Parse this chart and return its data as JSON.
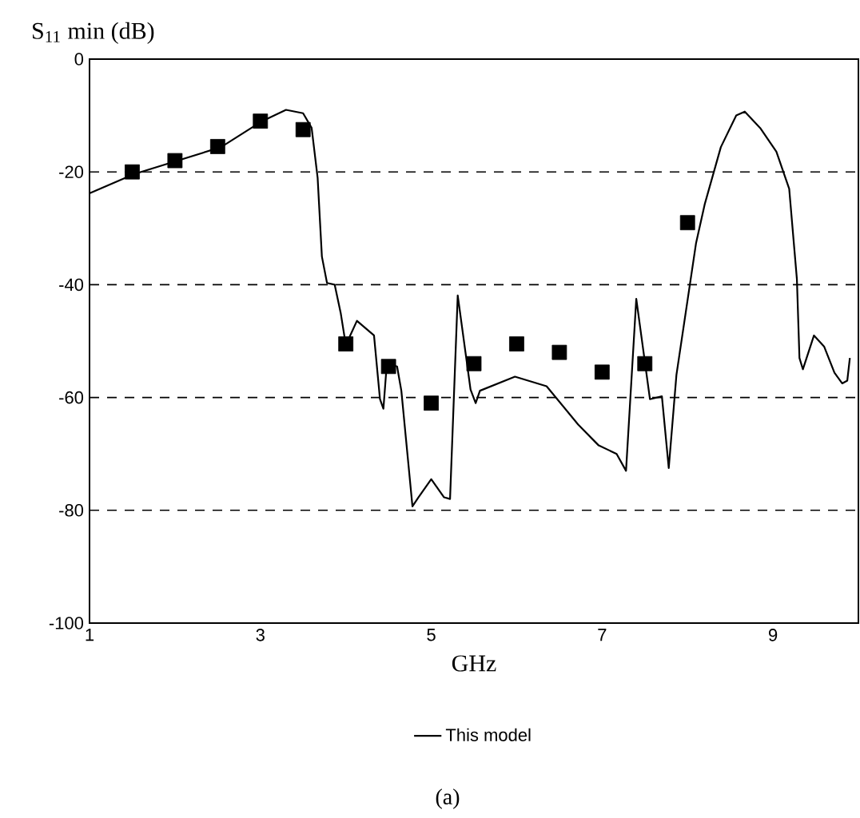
{
  "chart_data": {
    "type": "line",
    "ylabel": "S$_{11}$ min (dB)",
    "xlabel": "GHz",
    "xlim": [
      1,
      10
    ],
    "xticks": [
      1,
      3,
      5,
      7,
      9
    ],
    "ylim": [
      -100,
      0
    ],
    "yticks": [
      -100,
      -80,
      -60,
      -40,
      -20,
      0
    ],
    "grid": "y",
    "legend": "bottom",
    "annotations": [
      "(a)"
    ],
    "series": [
      {
        "name": "This model",
        "color": "#000000",
        "marker": "none",
        "x": [
          1,
          1.52,
          2.54,
          3.02,
          3.3,
          3.5,
          3.6,
          3.67,
          3.72,
          3.78,
          3.87,
          3.94,
          4.0,
          4.13,
          4.33,
          4.4,
          4.44,
          4.48,
          4.6,
          4.65,
          4.78,
          4.85,
          5.0,
          5.15,
          5.22,
          5.31,
          5.46,
          5.52,
          5.57,
          5.98,
          6.35,
          6.72,
          6.96,
          7.17,
          7.28,
          7.4,
          7.56,
          7.7,
          7.78,
          7.87,
          8.1,
          8.2,
          8.39,
          8.57,
          8.67,
          8.85,
          9.04,
          9.19,
          9.28,
          9.31,
          9.35,
          9.48,
          9.6,
          9.72,
          9.81,
          9.87,
          9.9
        ],
        "values": [
          -23.8,
          -20.4,
          -15.6,
          -11,
          -9,
          -9.6,
          -12.2,
          -21,
          -35,
          -39.7,
          -40,
          -45,
          -50.7,
          -46.4,
          -49,
          -60.3,
          -62,
          -54,
          -54.5,
          -58.8,
          -79.3,
          -77.7,
          -74.5,
          -77.7,
          -78,
          -41.9,
          -58.6,
          -61,
          -58.8,
          -56.3,
          -58,
          -64.8,
          -68.5,
          -70,
          -73,
          -42.5,
          -60.3,
          -59.8,
          -72.5,
          -56,
          -32.6,
          -25.8,
          -15.6,
          -10,
          -9.3,
          -12.2,
          -16.4,
          -23,
          -39,
          -53,
          -55,
          -49,
          -51,
          -55.6,
          -57.5,
          -57,
          -53
        ]
      },
      {
        "type": "scatter",
        "color": "#000000",
        "marker": "square",
        "x": [
          1.5,
          2,
          2.5,
          3,
          3.5,
          4,
          4.5,
          5,
          5.5,
          6,
          6.5,
          7,
          7.5,
          8
        ],
        "values": [
          -20,
          -18,
          -15.5,
          -11,
          -12.5,
          -50.5,
          -54.5,
          -61,
          -54,
          -50.5,
          -52,
          -55.5,
          -54,
          -29
        ]
      }
    ]
  }
}
